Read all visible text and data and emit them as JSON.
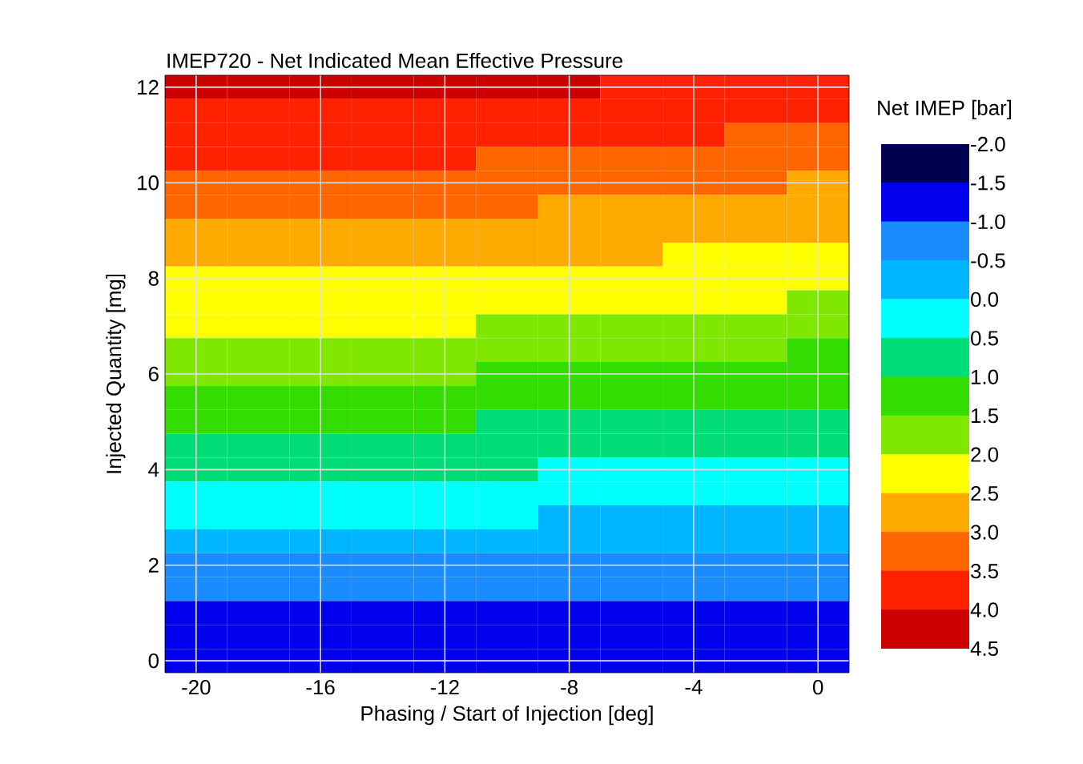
{
  "chart_data": {
    "type": "heatmap",
    "title": "IMEP720 - Net Indicated Mean Effective Pressure",
    "xlabel": "Phasing / Start of Injection  [deg]",
    "ylabel": "Injected Quantity [mg]",
    "clabel": "Net IMEP [bar]",
    "categories": [
      "-20",
      null,
      "-16",
      null,
      "-12",
      null,
      "-8",
      null,
      "-4",
      null,
      "0"
    ],
    "y_categories": [
      "12",
      null,
      null,
      null,
      "10",
      null,
      null,
      null,
      "8",
      null,
      null,
      null,
      "6",
      null,
      null,
      null,
      "4",
      null,
      null,
      null,
      "2",
      null,
      null,
      null,
      "0"
    ],
    "cells": [
      [
        4.25,
        4.25,
        4.25,
        4.25,
        4.25,
        4.25,
        4.25,
        3.75,
        3.75,
        3.75,
        3.75
      ],
      [
        3.75,
        3.75,
        3.75,
        3.75,
        3.75,
        3.75,
        3.75,
        3.75,
        3.75,
        3.75,
        3.75
      ],
      [
        3.75,
        3.75,
        3.75,
        3.75,
        3.75,
        3.75,
        3.75,
        3.75,
        3.75,
        3.25,
        3.25
      ],
      [
        3.75,
        3.75,
        3.75,
        3.75,
        3.75,
        3.25,
        3.25,
        3.25,
        3.25,
        3.25,
        3.25
      ],
      [
        3.25,
        3.25,
        3.25,
        3.25,
        3.25,
        3.25,
        3.25,
        3.25,
        3.25,
        3.25,
        2.75
      ],
      [
        3.25,
        3.25,
        3.25,
        3.25,
        3.25,
        3.25,
        2.75,
        2.75,
        2.75,
        2.75,
        2.75
      ],
      [
        2.75,
        2.75,
        2.75,
        2.75,
        2.75,
        2.75,
        2.75,
        2.75,
        2.75,
        2.75,
        2.75
      ],
      [
        2.75,
        2.75,
        2.75,
        2.75,
        2.75,
        2.75,
        2.75,
        2.75,
        2.25,
        2.25,
        2.25
      ],
      [
        2.25,
        2.25,
        2.25,
        2.25,
        2.25,
        2.25,
        2.25,
        2.25,
        2.25,
        2.25,
        2.25
      ],
      [
        2.25,
        2.25,
        2.25,
        2.25,
        2.25,
        2.25,
        2.25,
        2.25,
        2.25,
        2.25,
        1.75
      ],
      [
        2.25,
        2.25,
        2.25,
        2.25,
        2.25,
        1.75,
        1.75,
        1.75,
        1.75,
        1.75,
        1.75
      ],
      [
        1.75,
        1.75,
        1.75,
        1.75,
        1.75,
        1.75,
        1.75,
        1.75,
        1.75,
        1.75,
        1.25
      ],
      [
        1.75,
        1.75,
        1.75,
        1.75,
        1.75,
        1.25,
        1.25,
        1.25,
        1.25,
        1.25,
        1.25
      ],
      [
        1.25,
        1.25,
        1.25,
        1.25,
        1.25,
        1.25,
        1.25,
        1.25,
        1.25,
        1.25,
        1.25
      ],
      [
        1.25,
        1.25,
        1.25,
        1.25,
        1.25,
        0.75,
        0.75,
        0.75,
        0.75,
        0.75,
        0.75
      ],
      [
        0.75,
        0.75,
        0.75,
        0.75,
        0.75,
        0.75,
        0.75,
        0.75,
        0.75,
        0.75,
        0.75
      ],
      [
        0.75,
        0.75,
        0.75,
        0.75,
        0.75,
        0.75,
        0.25,
        0.25,
        0.25,
        0.25,
        0.25
      ],
      [
        0.25,
        0.25,
        0.25,
        0.25,
        0.25,
        0.25,
        0.25,
        0.25,
        0.25,
        0.25,
        0.25
      ],
      [
        0.25,
        0.25,
        0.25,
        0.25,
        0.25,
        0.25,
        -0.25,
        -0.25,
        -0.25,
        -0.25,
        -0.25
      ],
      [
        -0.25,
        -0.25,
        -0.25,
        -0.25,
        -0.25,
        -0.25,
        -0.25,
        -0.25,
        -0.25,
        -0.25,
        -0.25
      ],
      [
        -0.75,
        -0.75,
        -0.75,
        -0.75,
        -0.75,
        -0.75,
        -0.75,
        -0.75,
        -0.75,
        -0.75,
        -0.75
      ],
      [
        -0.75,
        -0.75,
        -0.75,
        -0.75,
        -0.75,
        -0.75,
        -0.75,
        -0.75,
        -0.75,
        -0.75,
        -0.75
      ],
      [
        -1.25,
        -1.25,
        -1.25,
        -1.25,
        -1.25,
        -1.25,
        -1.25,
        -1.25,
        -1.25,
        -1.25,
        -1.25
      ],
      [
        -1.25,
        -1.25,
        -1.25,
        -1.25,
        -1.25,
        -1.25,
        -1.25,
        -1.25,
        -1.25,
        -1.25,
        -1.25
      ],
      [
        -1.25,
        -1.25,
        -1.25,
        -1.25,
        -1.25,
        -1.25,
        -1.25,
        -1.25,
        -1.25,
        -1.25,
        -1.25
      ]
    ],
    "colors": [
      "#000050",
      "#0000ee",
      "#1a8cff",
      "#00b4ff",
      "#00ffff",
      "#00dd77",
      "#33dd00",
      "#80e800",
      "#ffff00",
      "#ffaa00",
      "#ff6600",
      "#ff2200",
      "#cc0000"
    ],
    "clim": [
      4.5,
      -2.0
    ],
    "cticks": [
      {
        "value": -2.0,
        "label": "-2.0"
      },
      {
        "value": -1.5,
        "label": "-1.5"
      },
      {
        "value": -1.0,
        "label": "-1.0"
      },
      {
        "value": -0.5,
        "label": "-0.5"
      },
      {
        "value": 0.0,
        "label": "0.0"
      },
      {
        "value": 0.5,
        "label": "0.5"
      },
      {
        "value": 1.0,
        "label": "1.0"
      },
      {
        "value": 1.5,
        "label": "1.5"
      },
      {
        "value": 2.0,
        "label": "2.0"
      },
      {
        "value": 2.5,
        "label": "2.5"
      },
      {
        "value": 3.0,
        "label": "3.0"
      },
      {
        "value": 3.5,
        "label": "3.5"
      },
      {
        "value": 4.0,
        "label": "4.0"
      },
      {
        "value": 4.5,
        "label": "4.5"
      }
    ],
    "grid": true
  }
}
